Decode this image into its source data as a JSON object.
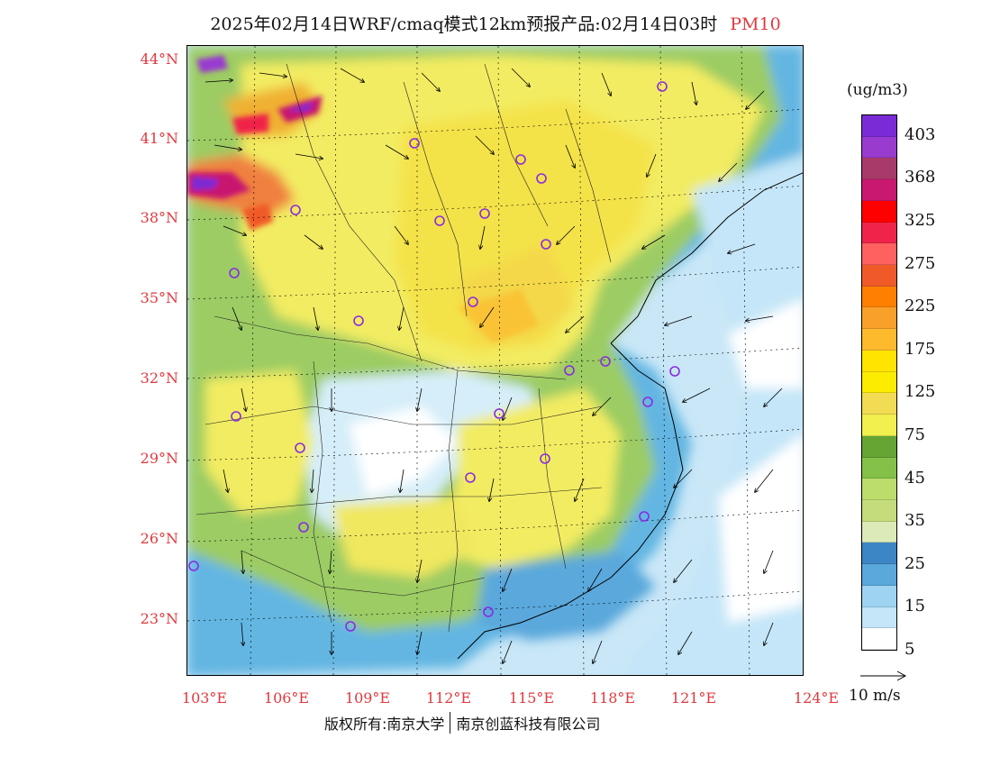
{
  "title": {
    "main": "2025年02月14日WRF/cmaq模式12km预报产品:02月14日03时",
    "variable": "PM10"
  },
  "axes": {
    "lat_labels": [
      "44°N",
      "41°N",
      "38°N",
      "35°N",
      "32°N",
      "29°N",
      "26°N",
      "23°N"
    ],
    "lon_labels": [
      "103°E",
      "106°E",
      "109°E",
      "112°E",
      "115°E",
      "118°E",
      "121°E",
      "124°E"
    ]
  },
  "legend": {
    "unit": "(ug/m3)",
    "labels": [
      "403",
      "368",
      "325",
      "275",
      "225",
      "175",
      "125",
      "75",
      "45",
      "35",
      "25",
      "15",
      "5"
    ],
    "colors": [
      "#7a2bd6",
      "#9a3bd0",
      "#a83a6a",
      "#c8186f",
      "#ff0000",
      "#f0244a",
      "#ff6060",
      "#f05a28",
      "#ff8000",
      "#f8a02a",
      "#fcba2c",
      "#ffe400",
      "#fcec00",
      "#f2dc54",
      "#f0f04e",
      "#64a534",
      "#84c148",
      "#bcdc6c",
      "#c4dc7c",
      "#dceab8",
      "#3d86c6",
      "#5aa8dc",
      "#9ed4f2",
      "#c4e6f8",
      "#ffffff"
    ]
  },
  "vector_legend": {
    "label": "10 m/s"
  },
  "footer": {
    "copyright_prefix": "版权所有:南京大学",
    "company": "南京创蓝科技有限公司"
  }
}
